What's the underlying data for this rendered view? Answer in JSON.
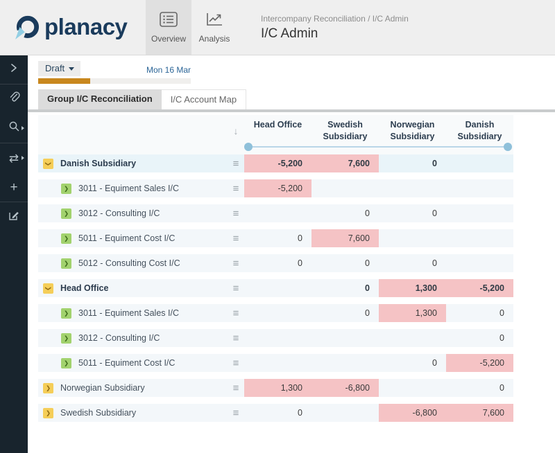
{
  "header": {
    "logo_text": "planacy",
    "breadcrumb": "Intercompany Reconciliation / I/C Admin",
    "title": "I/C Admin",
    "nav": [
      {
        "label": "Overview",
        "icon": "list-icon",
        "active": true
      },
      {
        "label": "Analysis",
        "icon": "line-chart-icon",
        "active": false
      }
    ]
  },
  "sidebar": {
    "items": [
      {
        "name": "expand-panel",
        "icon": "chevron-right-icon"
      },
      {
        "name": "attachments",
        "icon": "paperclip-icon"
      },
      {
        "name": "search",
        "icon": "search-icon",
        "has_caret": true
      },
      {
        "name": "transfer",
        "icon": "swap-arrows-icon",
        "has_caret": true
      },
      {
        "name": "add",
        "icon": "plus-icon"
      },
      {
        "name": "edit",
        "icon": "edit-note-icon"
      }
    ]
  },
  "toolbar": {
    "status_label": "Draft",
    "date_label": "Mon 16 Mar",
    "progress_percent": 34
  },
  "tabs": [
    {
      "label": "Group I/C Reconciliation",
      "active": true
    },
    {
      "label": "I/C Account Map",
      "active": false
    }
  ],
  "table": {
    "sort_icon": "↓",
    "columns": [
      "Head Office",
      "Swedish Subsidiary",
      "Norwegian Subsidiary",
      "Danish Subsidiary"
    ],
    "rows": [
      {
        "label": "Danish Subsidiary",
        "level": 0,
        "expanded": true,
        "bold": true,
        "highlight": true,
        "cells": [
          {
            "v": "-5,200",
            "flag": true
          },
          {
            "v": "7,600",
            "flag": true
          },
          {
            "v": "0",
            "flag": false
          },
          {
            "v": "",
            "flag": false
          }
        ]
      },
      {
        "label": "3011 - Equiment Sales I/C",
        "level": 1,
        "expanded": false,
        "bold": false,
        "highlight": false,
        "cells": [
          {
            "v": "-5,200",
            "flag": true
          },
          {
            "v": "",
            "flag": false
          },
          {
            "v": "",
            "flag": false
          },
          {
            "v": "",
            "flag": false
          }
        ]
      },
      {
        "label": "3012 - Consulting I/C",
        "level": 1,
        "expanded": false,
        "bold": false,
        "highlight": false,
        "cells": [
          {
            "v": "",
            "flag": false
          },
          {
            "v": "0",
            "flag": false
          },
          {
            "v": "0",
            "flag": false
          },
          {
            "v": "",
            "flag": false
          }
        ]
      },
      {
        "label": "5011 - Equiment Cost I/C",
        "level": 1,
        "expanded": false,
        "bold": false,
        "highlight": false,
        "cells": [
          {
            "v": "0",
            "flag": false
          },
          {
            "v": "7,600",
            "flag": true
          },
          {
            "v": "",
            "flag": false
          },
          {
            "v": "",
            "flag": false
          }
        ]
      },
      {
        "label": "5012 - Consulting Cost I/C",
        "level": 1,
        "expanded": false,
        "bold": false,
        "highlight": false,
        "cells": [
          {
            "v": "0",
            "flag": false
          },
          {
            "v": "0",
            "flag": false
          },
          {
            "v": "0",
            "flag": false
          },
          {
            "v": "",
            "flag": false
          }
        ]
      },
      {
        "label": "Head Office",
        "level": 0,
        "expanded": true,
        "bold": true,
        "highlight": false,
        "cells": [
          {
            "v": "",
            "flag": false
          },
          {
            "v": "0",
            "flag": false
          },
          {
            "v": "1,300",
            "flag": true
          },
          {
            "v": "-5,200",
            "flag": true
          }
        ]
      },
      {
        "label": "3011 - Equiment Sales I/C",
        "level": 1,
        "expanded": false,
        "bold": false,
        "highlight": false,
        "cells": [
          {
            "v": "",
            "flag": false
          },
          {
            "v": "0",
            "flag": false
          },
          {
            "v": "1,300",
            "flag": true
          },
          {
            "v": "0",
            "flag": false
          }
        ]
      },
      {
        "label": "3012 - Consulting I/C",
        "level": 1,
        "expanded": false,
        "bold": false,
        "highlight": false,
        "cells": [
          {
            "v": "",
            "flag": false
          },
          {
            "v": "",
            "flag": false
          },
          {
            "v": "",
            "flag": false
          },
          {
            "v": "0",
            "flag": false
          }
        ]
      },
      {
        "label": "5011 - Equiment Cost I/C",
        "level": 1,
        "expanded": false,
        "bold": false,
        "highlight": false,
        "cells": [
          {
            "v": "",
            "flag": false
          },
          {
            "v": "",
            "flag": false
          },
          {
            "v": "0",
            "flag": false
          },
          {
            "v": "-5,200",
            "flag": true
          }
        ]
      },
      {
        "label": "Norwegian Subsidiary",
        "level": 0,
        "expanded": false,
        "bold": false,
        "highlight": false,
        "cells": [
          {
            "v": "1,300",
            "flag": true
          },
          {
            "v": "-6,800",
            "flag": true
          },
          {
            "v": "",
            "flag": false
          },
          {
            "v": "0",
            "flag": false
          }
        ]
      },
      {
        "label": "Swedish Subsidiary",
        "level": 0,
        "expanded": false,
        "bold": false,
        "highlight": false,
        "cells": [
          {
            "v": "0",
            "flag": false
          },
          {
            "v": "",
            "flag": false
          },
          {
            "v": "-6,800",
            "flag": true
          },
          {
            "v": "7,600",
            "flag": true
          }
        ]
      }
    ]
  },
  "colors": {
    "flag_cell_bg": "#f5c3c5",
    "progress_orange": "#c8871e",
    "date_blue": "#2a6496",
    "parent_icon_yellow": "#f5ce59",
    "child_icon_green": "#a2d26e",
    "slider_blue": "#8fc0da",
    "sidebar_navy": "#18242d",
    "logo_navy": "#1a3b5c"
  }
}
